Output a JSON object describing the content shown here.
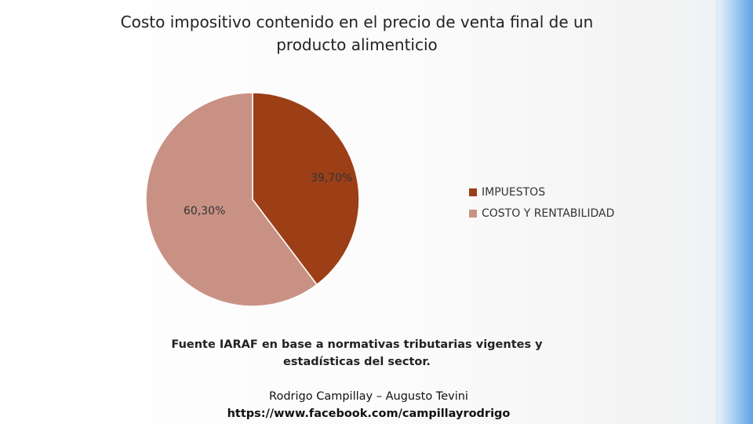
{
  "chart_data": {
    "type": "pie",
    "title": "Costo impositivo contenido en el precio de venta final de un producto alimenticio",
    "slices": [
      {
        "label": "IMPUESTOS",
        "value": 39.7,
        "display": "39,70%",
        "color": "#9c3f17"
      },
      {
        "label": "COSTO Y RENTABILIDAD",
        "value": 60.3,
        "display": "60,30%",
        "color": "#c99184"
      }
    ],
    "legend_position": "right"
  },
  "footer": {
    "source": "Fuente IARAF en base a normativas tributarias vigentes y estadísticas del sector.",
    "authors": "Rodrigo Campillay – Augusto Tevini",
    "url": "https://www.facebook.com/campillayrodrigo"
  },
  "theme": {
    "accent_bar": "#6aaae6"
  }
}
